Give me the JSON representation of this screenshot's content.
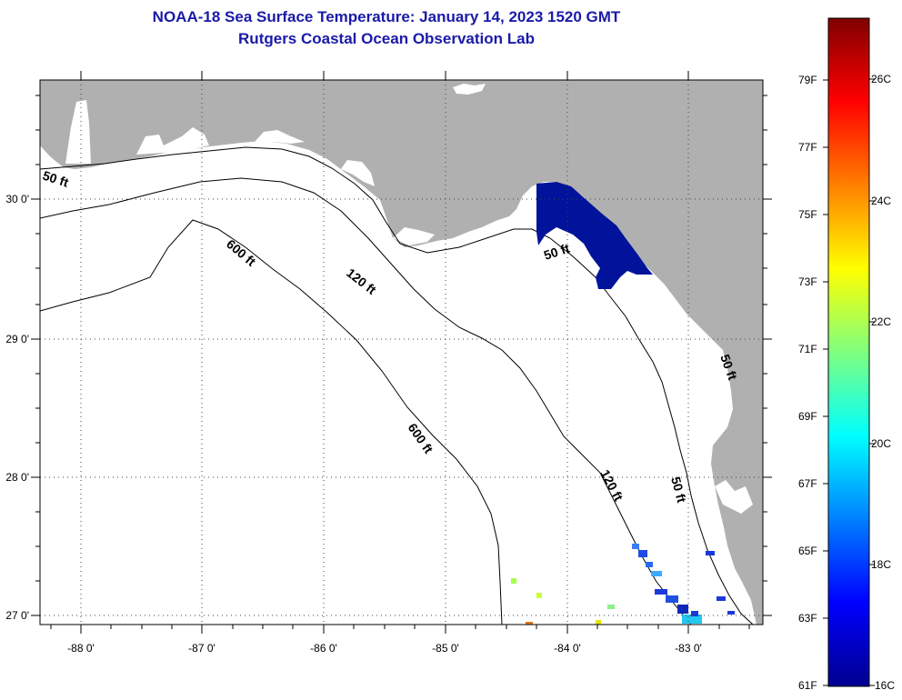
{
  "title": "NOAA-18 Sea Surface Temperature:  January 14, 2023 1520 GMT",
  "subtitle": "Rutgers Coastal Ocean Observation Lab",
  "map": {
    "lon_ticks": [
      "-88 0'",
      "-87 0'",
      "-86 0'",
      "-85 0'",
      "-84 0'",
      "-83 0'"
    ],
    "lat_ticks": [
      "30 0'",
      "29 0'",
      "28 0'",
      "27 0'"
    ],
    "land_color": "#b0b0b0",
    "sea_color": "#ffffff",
    "contour_labels": [
      "50 ft",
      "600 ft",
      "120 ft",
      "50 ft",
      "600 ft",
      "120 ft",
      "50 ft",
      "50 ft"
    ]
  },
  "colorbar": {
    "fahrenheit": [
      "79F",
      "77F",
      "75F",
      "73F",
      "71F",
      "69F",
      "67F",
      "65F",
      "63F",
      "61F"
    ],
    "celsius": [
      "26C",
      "24C",
      "22C",
      "20C",
      "18C",
      "16C"
    ]
  }
}
